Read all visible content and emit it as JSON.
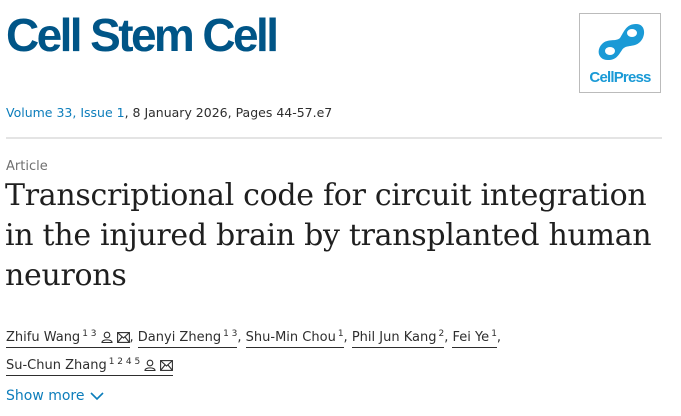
{
  "journal": {
    "name": "Cell Stem Cell",
    "publisher_logo": "CellPress"
  },
  "citation": {
    "volume": "Volume 33, Issue 1",
    "rest": ", 8 January 2026, Pages 44-57.e7"
  },
  "article": {
    "type": "Article",
    "title": "Transcriptional code for circuit integration in the injured brain by transplanted human neurons"
  },
  "authors": [
    {
      "name": "Zhifu Wang",
      "sup": "1 3",
      "icons": true
    },
    {
      "name": "Danyi Zheng",
      "sup": "1 3",
      "icons": false
    },
    {
      "name": "Shu-Min Chou",
      "sup": "1",
      "icons": false
    },
    {
      "name": "Phil Jun Kang",
      "sup": "2",
      "icons": false
    },
    {
      "name": "Fei Ye",
      "sup": "1",
      "icons": false
    },
    {
      "name": "Su-Chun Zhang",
      "sup": "1 2 4 5",
      "icons": true
    }
  ],
  "show_more": "Show more",
  "colors": {
    "journal": "#005587",
    "link": "#0c7dbb",
    "logo": "#1a9ad6"
  }
}
